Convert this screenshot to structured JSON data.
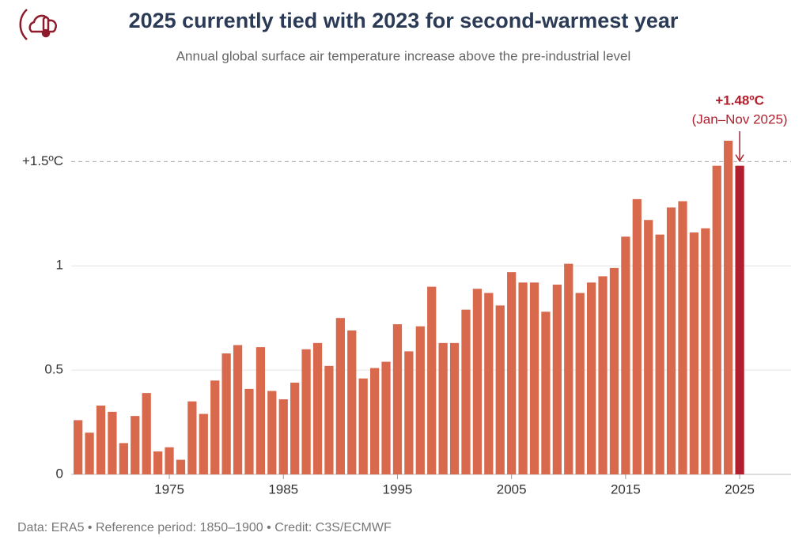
{
  "chart_data": {
    "type": "bar",
    "title": "2025 currently tied with 2023 for second-warmest year",
    "subtitle": "Annual global surface air temperature increase above the pre-industrial level",
    "footer": "Data: ERA5 • Reference period: 1850–1900 • Credit: C3S/ECMWF",
    "x": [
      1967,
      1968,
      1969,
      1970,
      1971,
      1972,
      1973,
      1974,
      1975,
      1976,
      1977,
      1978,
      1979,
      1980,
      1981,
      1982,
      1983,
      1984,
      1985,
      1986,
      1987,
      1988,
      1989,
      1990,
      1991,
      1992,
      1993,
      1994,
      1995,
      1996,
      1997,
      1998,
      1999,
      2000,
      2001,
      2002,
      2003,
      2004,
      2005,
      2006,
      2007,
      2008,
      2009,
      2010,
      2011,
      2012,
      2013,
      2014,
      2015,
      2016,
      2017,
      2018,
      2019,
      2020,
      2021,
      2022,
      2023,
      2024,
      2025
    ],
    "values": [
      0.26,
      0.2,
      0.33,
      0.3,
      0.15,
      0.28,
      0.39,
      0.11,
      0.13,
      0.07,
      0.35,
      0.29,
      0.45,
      0.58,
      0.62,
      0.41,
      0.61,
      0.4,
      0.36,
      0.44,
      0.6,
      0.63,
      0.52,
      0.75,
      0.69,
      0.46,
      0.51,
      0.54,
      0.72,
      0.59,
      0.71,
      0.9,
      0.63,
      0.63,
      0.79,
      0.89,
      0.87,
      0.81,
      0.97,
      0.92,
      0.92,
      0.78,
      0.91,
      1.01,
      0.87,
      0.92,
      0.95,
      0.99,
      1.14,
      1.32,
      1.22,
      1.15,
      1.28,
      1.31,
      1.16,
      1.18,
      1.48,
      1.6,
      1.48
    ],
    "color": "#d8694d",
    "highlight_color": "#b11f2e",
    "annotation": {
      "label": "+1.48ºC",
      "period": "(Jan–Nov 2025)"
    },
    "xlim": [
      1966.4,
      2029.5
    ],
    "xticks": [
      1975,
      1985,
      1995,
      2005,
      2015,
      2025
    ],
    "ylim": [
      0,
      1.6
    ],
    "yticks": [
      0,
      0.5,
      1,
      {
        "value": 1.5,
        "label": "+1.5ºC"
      }
    ],
    "grid": true
  }
}
